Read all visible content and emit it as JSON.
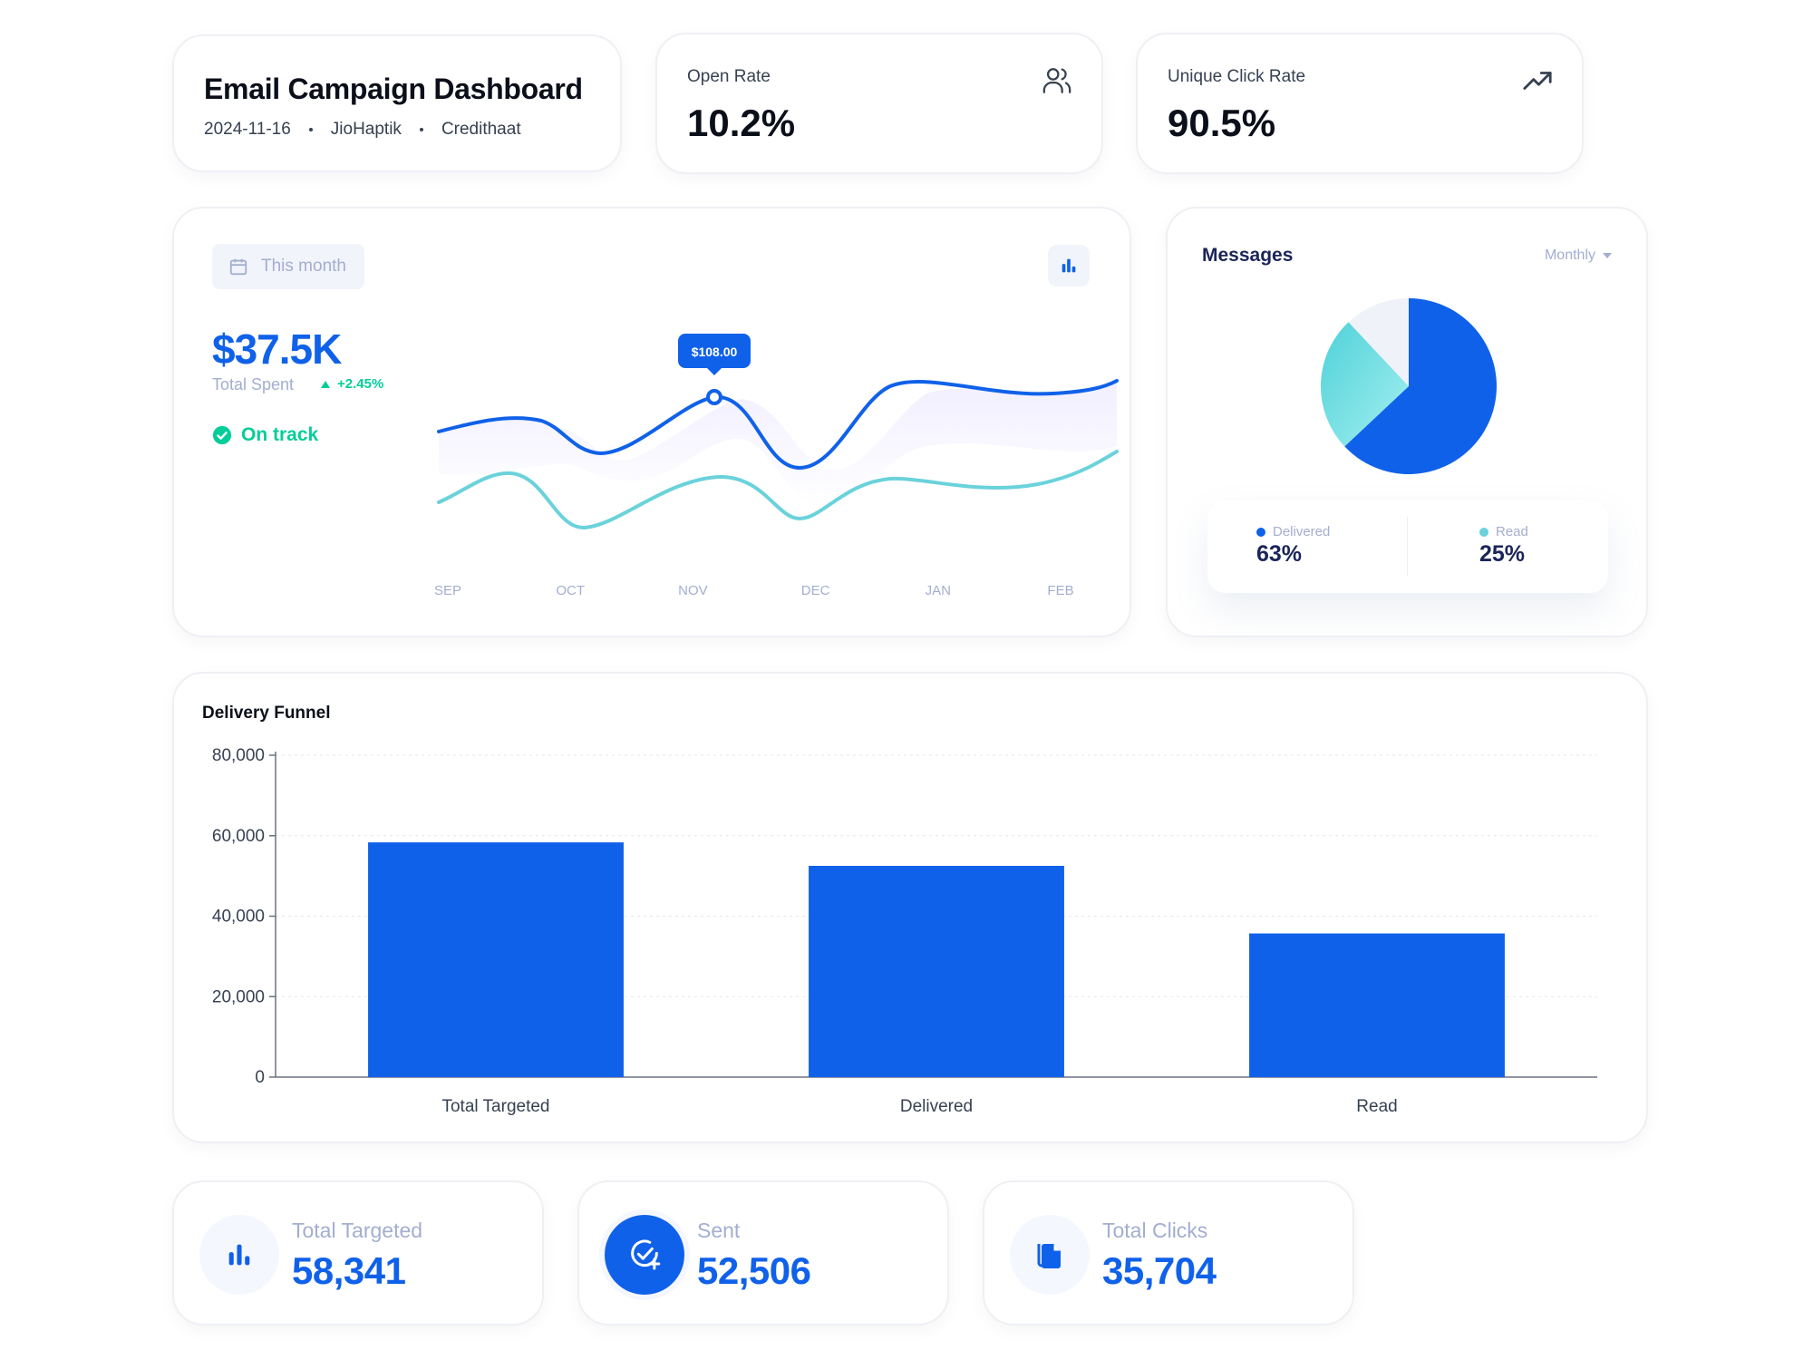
{
  "header": {
    "title": "Email Campaign Dashboard",
    "date": "2024-11-16",
    "account": "JioHaptik",
    "brand": "Credithaat"
  },
  "kpis": {
    "open_rate": {
      "label": "Open Rate",
      "value": "10.2%",
      "icon": "users-icon"
    },
    "unique_click_rate": {
      "label": "Unique Click Rate",
      "value": "90.5%",
      "icon": "trending-up-icon"
    }
  },
  "spending": {
    "period_label": "This month",
    "total_value": "$37.5K",
    "total_label": "Total Spent",
    "change": "+2.45%",
    "status": "On track",
    "tooltip": "$108.00",
    "months": [
      "SEP",
      "OCT",
      "NOV",
      "DEC",
      "JAN",
      "FEB"
    ],
    "accent_color": "#1061e9",
    "secondary_color": "#6ad2db"
  },
  "messages": {
    "title": "Messages",
    "period": "Monthly",
    "legend": [
      {
        "name": "Delivered",
        "value": "63%",
        "color": "#1061e9"
      },
      {
        "name": "Read",
        "value": "25%",
        "color": "#6ad2db"
      }
    ],
    "slices": [
      {
        "name": "Delivered",
        "percent": 63,
        "color": "#1061e9"
      },
      {
        "name": "Read",
        "percent": 25,
        "color": "#6ad2db"
      },
      {
        "name": "Other",
        "percent": 12,
        "color": "#eff3f9"
      }
    ]
  },
  "chart_data": {
    "type": "bar",
    "title": "Delivery Funnel",
    "categories": [
      "Total Targeted",
      "Delivered",
      "Read"
    ],
    "values": [
      58341,
      52506,
      35704
    ],
    "ylim": [
      0,
      80000
    ],
    "yticks": [
      0,
      20000,
      40000,
      60000,
      80000
    ],
    "ytick_labels": [
      "0",
      "20,000",
      "40,000",
      "60,000",
      "80,000"
    ],
    "xlabel": "",
    "ylabel": "",
    "grid": true,
    "color": "#1061e9"
  },
  "stats": [
    {
      "label": "Total Targeted",
      "value": "58,341",
      "icon": "bar-chart-icon"
    },
    {
      "label": "Sent",
      "value": "52,506",
      "icon": "check-plus-icon"
    },
    {
      "label": "Total Clicks",
      "value": "35,704",
      "icon": "files-icon"
    }
  ]
}
